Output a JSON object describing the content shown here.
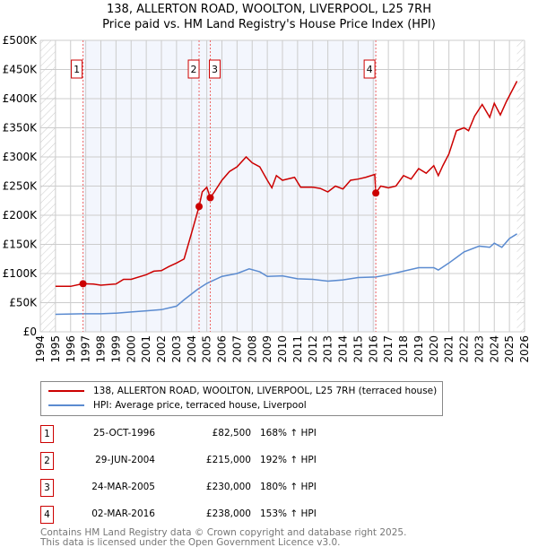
{
  "title": "138, ALLERTON ROAD, WOOLTON, LIVERPOOL, L25 7RH",
  "subtitle": "Price paid vs. HM Land Registry's House Price Index (HPI)",
  "chart_data": {
    "type": "line",
    "xlim": [
      1994,
      2026
    ],
    "ylim": [
      0,
      500000
    ],
    "x_ticks": [
      "1994",
      "1995",
      "1996",
      "1997",
      "1998",
      "1999",
      "2000",
      "2001",
      "2002",
      "2003",
      "2004",
      "2005",
      "2006",
      "2007",
      "2008",
      "2009",
      "2010",
      "2011",
      "2012",
      "2013",
      "2014",
      "2015",
      "2016",
      "2017",
      "2018",
      "2019",
      "2020",
      "2021",
      "2022",
      "2023",
      "2024",
      "2025",
      "2026"
    ],
    "y_ticks": [
      {
        "v": 0,
        "l": "£0"
      },
      {
        "v": 50000,
        "l": "£50K"
      },
      {
        "v": 100000,
        "l": "£100K"
      },
      {
        "v": 150000,
        "l": "£150K"
      },
      {
        "v": 200000,
        "l": "£200K"
      },
      {
        "v": 250000,
        "l": "£250K"
      },
      {
        "v": 300000,
        "l": "£300K"
      },
      {
        "v": 350000,
        "l": "£350K"
      },
      {
        "v": 400000,
        "l": "£400K"
      },
      {
        "v": 450000,
        "l": "£450K"
      },
      {
        "v": 500000,
        "l": "£500K"
      }
    ],
    "series": [
      {
        "name": "138, ALLERTON ROAD, WOOLTON, LIVERPOOL, L25 7RH (terraced house)",
        "color": "#cc0000",
        "x": [
          1995,
          1996,
          1996.8,
          1997.5,
          1998,
          1999,
          1999.5,
          2000,
          2001,
          2001.5,
          2002,
          2002.5,
          2003,
          2003.5,
          2004,
          2004.49,
          2004.7,
          2005,
          2005.23,
          2005.5,
          2006,
          2006.5,
          2007,
          2007.6,
          2008,
          2008.5,
          2009,
          2009.3,
          2009.6,
          2010,
          2010.8,
          2011.2,
          2012,
          2012.5,
          2013,
          2013.5,
          2014,
          2014.5,
          2015,
          2015.5,
          2016.1,
          2016.17,
          2016.5,
          2017,
          2017.5,
          2018,
          2018.5,
          2019,
          2019.5,
          2020,
          2020.3,
          2020.6,
          2021,
          2021.5,
          2022,
          2022.3,
          2022.7,
          2023.2,
          2023.7,
          2024,
          2024.4,
          2024.8,
          2025.2,
          2025.5
        ],
        "y": [
          78000,
          78000,
          82500,
          82000,
          80000,
          82000,
          90000,
          90000,
          98000,
          104000,
          105000,
          112000,
          118000,
          125000,
          170000,
          215000,
          240000,
          248000,
          230000,
          240000,
          260000,
          275000,
          283000,
          300000,
          290000,
          283000,
          260000,
          247000,
          268000,
          260000,
          265000,
          248000,
          248000,
          246000,
          240000,
          250000,
          245000,
          260000,
          262000,
          265000,
          270000,
          238000,
          250000,
          247000,
          250000,
          268000,
          262000,
          280000,
          272000,
          285000,
          268000,
          285000,
          305000,
          345000,
          350000,
          345000,
          370000,
          390000,
          368000,
          392000,
          372000,
          395000,
          415000,
          430000
        ]
      },
      {
        "name": "HPI: Average price, terraced house, Liverpool",
        "color": "#5b8bd0",
        "x": [
          1995,
          1996.8,
          1998,
          1999,
          2000,
          2001,
          2002,
          2003,
          2003.5,
          2004.4,
          2005,
          2006,
          2007,
          2007.8,
          2008.5,
          2009,
          2010,
          2011,
          2012,
          2013,
          2014,
          2015,
          2016.17,
          2017,
          2018,
          2019,
          2020,
          2020.3,
          2021,
          2022,
          2023,
          2023.7,
          2024,
          2024.5,
          2025,
          2025.5
        ],
        "y": [
          30000,
          31000,
          31000,
          32000,
          34000,
          36000,
          38000,
          44000,
          55000,
          73000,
          83000,
          95000,
          100000,
          108000,
          103000,
          95000,
          96000,
          91000,
          90000,
          87000,
          89000,
          93000,
          94000,
          98000,
          104000,
          110000,
          110000,
          106000,
          118000,
          137000,
          147000,
          145000,
          152000,
          145000,
          160000,
          168000
        ]
      }
    ],
    "sales": [
      {
        "n": "1",
        "x": 1996.82,
        "price": 82500,
        "date": "25-OCT-1996",
        "price_label": "£82,500",
        "hpi": "168% ↑ HPI"
      },
      {
        "n": "2",
        "x": 2004.49,
        "price": 215000,
        "date": "29-JUN-2004",
        "price_label": "£215,000",
        "hpi": "192% ↑ HPI"
      },
      {
        "n": "3",
        "x": 2005.23,
        "price": 230000,
        "date": "24-MAR-2005",
        "price_label": "£230,000",
        "hpi": "180% ↑ HPI"
      },
      {
        "n": "4",
        "x": 2016.17,
        "price": 238000,
        "date": "02-MAR-2016",
        "price_label": "£238,000",
        "hpi": "153% ↑ HPI"
      }
    ]
  },
  "legend": {
    "red": "138, ALLERTON ROAD, WOOLTON, LIVERPOOL, L25 7RH (terraced house)",
    "blue": "HPI: Average price, terraced house, Liverpool"
  },
  "footer": {
    "line1": "Contains HM Land Registry data © Crown copyright and database right 2025.",
    "line2": "This data is licensed under the Open Government Licence v3.0."
  }
}
